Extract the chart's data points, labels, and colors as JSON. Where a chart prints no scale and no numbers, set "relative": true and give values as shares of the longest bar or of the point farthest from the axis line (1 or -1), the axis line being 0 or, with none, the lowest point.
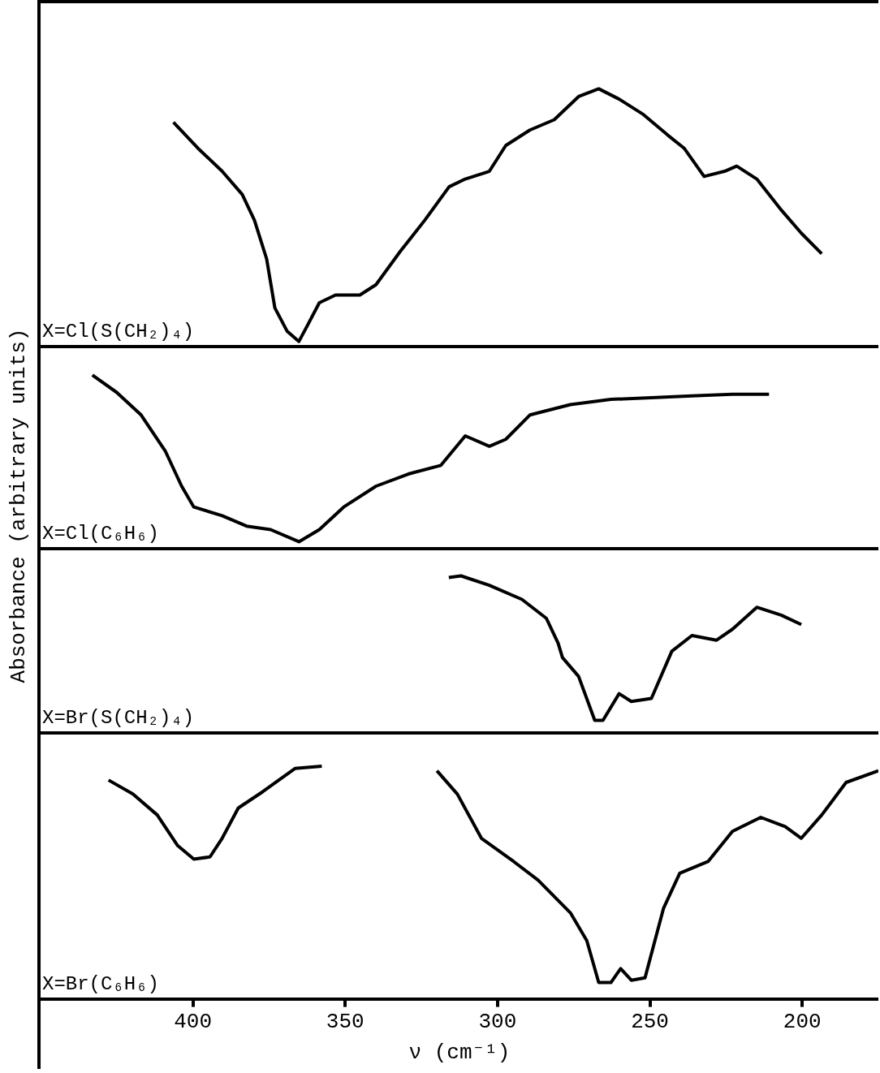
{
  "chart_data": [
    {
      "type": "line",
      "relative": true,
      "ylabel": "Absorbance (arbitrary units)",
      "annotations": [
        "X=Cl(S(CH₂)₄)"
      ],
      "xlim": [
        450,
        175
      ],
      "xticks": [
        400,
        350,
        300,
        250,
        200
      ],
      "tick_labels": false,
      "color": "#000000",
      "x": [
        406.4,
        398.4,
        390.4,
        383.8,
        379.8,
        375.8,
        373.1,
        369.1,
        365.2,
        362.5,
        358.5,
        353.2,
        345.2,
        339.9,
        331.9,
        323.9,
        315.9,
        310.6,
        302.7,
        297.3,
        289.4,
        281.4,
        273.4,
        266.8,
        260.1,
        252.1,
        244.1,
        238.8,
        232.2,
        225.5,
        221.5,
        214.9,
        206.9,
        200.3,
        193.6
      ],
      "values": [
        0.87,
        0.77,
        0.68,
        0.59,
        0.49,
        0.34,
        0.15,
        0.06,
        0.02,
        0.08,
        0.17,
        0.2,
        0.2,
        0.24,
        0.37,
        0.49,
        0.62,
        0.65,
        0.68,
        0.78,
        0.84,
        0.88,
        0.97,
        1,
        0.96,
        0.9,
        0.82,
        0.77,
        0.66,
        0.68,
        0.7,
        0.65,
        0.53,
        0.44,
        0.36
      ]
    },
    {
      "type": "line",
      "relative": true,
      "annotations": [
        "X=Cl(C₆H₆)"
      ],
      "xlim": [
        450,
        175
      ],
      "xticks": [
        400,
        350,
        300,
        250,
        200
      ],
      "tick_labels": false,
      "color": "#000000",
      "x": [
        433,
        425,
        417,
        409,
        403.7,
        399.7,
        390.4,
        382.4,
        374.5,
        365.2,
        358.5,
        350.5,
        339.9,
        329.3,
        318.6,
        310.6,
        302.7,
        297.3,
        289.4,
        276.1,
        262.8,
        249.5,
        236.2,
        222.9,
        210.9
      ],
      "values": [
        1,
        0.9,
        0.77,
        0.56,
        0.36,
        0.24,
        0.19,
        0.13,
        0.11,
        0.04,
        0.11,
        0.24,
        0.36,
        0.43,
        0.48,
        0.65,
        0.59,
        0.63,
        0.77,
        0.83,
        0.86,
        0.87,
        0.88,
        0.89,
        0.89
      ]
    },
    {
      "type": "line",
      "relative": true,
      "annotations": [
        "X=Br(S(CH₂)₄)"
      ],
      "xlim": [
        450,
        175
      ],
      "xticks": [
        400,
        350,
        300,
        250,
        200
      ],
      "tick_labels": false,
      "color": "#000000",
      "x": [
        316,
        312,
        302.7,
        292,
        284,
        280.1,
        278.7,
        273.4,
        268.1,
        265.4,
        260.1,
        256.1,
        249.5,
        242.8,
        236.2,
        228.2,
        222.9,
        214.9,
        206.9,
        200.3
      ],
      "values": [
        0.99,
        1,
        0.94,
        0.85,
        0.73,
        0.57,
        0.48,
        0.36,
        0.08,
        0.08,
        0.25,
        0.2,
        0.22,
        0.52,
        0.62,
        0.59,
        0.66,
        0.8,
        0.75,
        0.69
      ]
    },
    {
      "type": "line",
      "relative": true,
      "annotations": [
        "X=Br(C₆H₆)"
      ],
      "xlabel": "ν (cm⁻¹)",
      "xlim": [
        450,
        175
      ],
      "xticks": [
        400,
        350,
        300,
        250,
        200
      ],
      "tick_labels": "x",
      "color": "#000000",
      "x": [
        427.7,
        419.7,
        411.7,
        405.1,
        399.7,
        394.4,
        390.4,
        385.1,
        377.1,
        366.5,
        357.7,
        340,
        319.9,
        313.2,
        305.3,
        294.7,
        286.7,
        276.1,
        270.7,
        266.8,
        262.8,
        259.6,
        256.1,
        251.6,
        245.5,
        240.2,
        230.9,
        222.9,
        213.6,
        205.6,
        200.3,
        193.6,
        185.6,
        175
      ],
      "values": [
        0.94,
        0.88,
        0.79,
        0.66,
        0.6,
        0.61,
        0.69,
        0.82,
        0.89,
        0.99,
        1,
        null,
        0.98,
        0.88,
        0.69,
        0.59,
        0.51,
        0.37,
        0.25,
        0.07,
        0.07,
        0.13,
        0.08,
        0.09,
        0.39,
        0.54,
        0.59,
        0.72,
        0.78,
        0.74,
        0.69,
        0.79,
        0.93,
        0.98
      ]
    }
  ]
}
